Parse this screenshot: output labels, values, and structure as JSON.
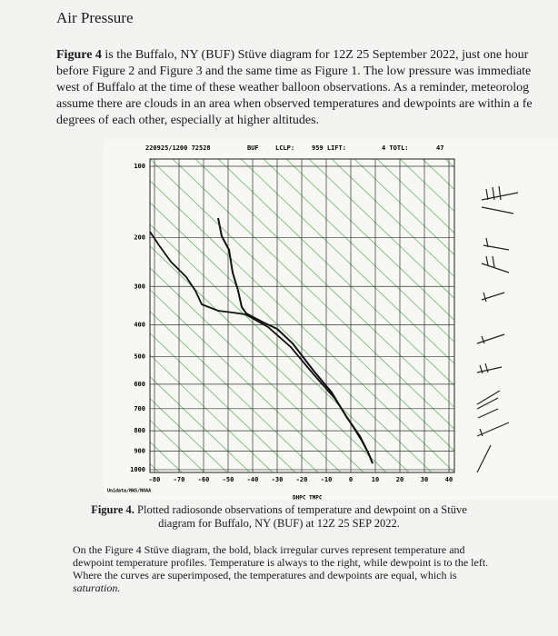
{
  "header": {
    "title": "Air Pressure"
  },
  "intro": {
    "bold_lead": "Figure 4",
    "lines": [
      "is the Buffalo, NY (BUF) Stüve diagram for 12Z 25 September 2022, just one hour",
      "before Figure 2 and Figure 3 and the same time as Figure 1. The low pressure was immediate",
      "west of Buffalo at the time of these weather balloon observations. As a reminder, meteorolog",
      "assume there are clouds in an area when observed temperatures and dewpoints are within a fe",
      "degrees of each other, especially at higher altitudes."
    ]
  },
  "figure": {
    "header": [
      "220925/1200 72528",
      "BUF",
      "LCLP:",
      "959 LIFT:",
      "4 TOTL:",
      "47"
    ],
    "pressure_labels": [
      100,
      200,
      300,
      400,
      500,
      600,
      700,
      800,
      900,
      1000
    ],
    "temperature_labels": [
      -80,
      -70,
      -60,
      -50,
      -40,
      -30,
      -20,
      -10,
      0,
      10,
      20,
      30,
      40
    ],
    "credit": "Unidata/NWS/NOAA",
    "axis_note": "DHPC TMPC"
  },
  "caption": {
    "bold_lead": "Figure 4.",
    "lines": [
      "Plotted radiosonde observations of temperature and dewpoint on a Stüve",
      "diagram for Buffalo, NY (BUF) at 12Z 25 SEP 2022."
    ]
  },
  "closing": {
    "lines": [
      "On the Figure 4 Stüve diagram, the bold, black irregular curves represent temperature and",
      "dewpoint temperature profiles. Temperature is always to the right, while dewpoint is to the left.",
      "Where the curves are superimposed, the temperatures and dewpoints are equal, which is"
    ],
    "italic_text": "saturation."
  }
}
